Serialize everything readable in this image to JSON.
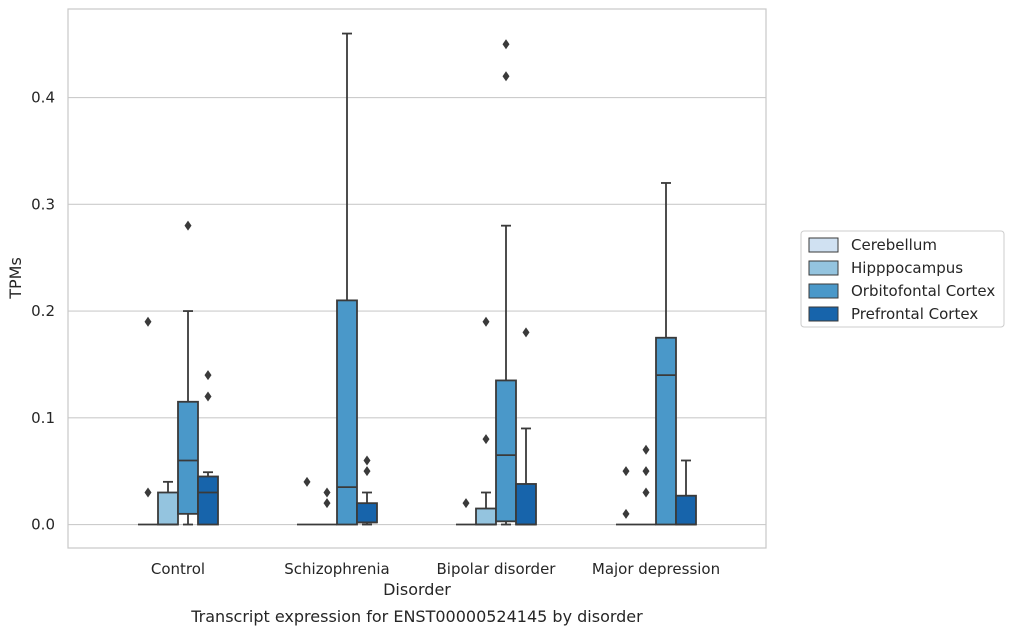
{
  "chart_data": {
    "type": "box",
    "title": "",
    "caption": "Transcript expression for ENST00000524145 by disorder",
    "xlabel": "Disorder",
    "ylabel": "TPMs",
    "ylim": [
      -0.022,
      0.483
    ],
    "yticks": [
      0.0,
      0.1,
      0.2,
      0.3,
      0.4
    ],
    "ytick_labels": [
      "0.0",
      "0.1",
      "0.2",
      "0.3",
      "0.4"
    ],
    "grid": "horizontal",
    "legend_position": "right",
    "categories": [
      "Control",
      "Schizophrenia",
      "Bipolar disorder",
      "Major depression"
    ],
    "colors": {
      "Cerebellum": "#d0e1f2",
      "Hipppocampus": "#94c4df",
      "Orbitofontal Cortex": "#4a98c9",
      "Prefrontal Cortex": "#1764ab",
      "edge": "#3a3a3a",
      "grid": "#cccccc",
      "frame": "#c8c8c8"
    },
    "series": [
      {
        "name": "Cerebellum",
        "boxes": [
          {
            "q1": 0.0,
            "median": 0.0,
            "q3": 0.0,
            "whislo": 0.0,
            "whishi": 0.0,
            "fliers": [
              0.19,
              0.03
            ]
          },
          {
            "q1": 0.0,
            "median": 0.0,
            "q3": 0.0,
            "whislo": 0.0,
            "whishi": 0.0,
            "fliers": [
              0.04
            ]
          },
          {
            "q1": 0.0,
            "median": 0.0,
            "q3": 0.0,
            "whislo": 0.0,
            "whishi": 0.0,
            "fliers": [
              0.02
            ]
          },
          {
            "q1": 0.0,
            "median": 0.0,
            "q3": 0.0,
            "whislo": 0.0,
            "whishi": 0.0,
            "fliers": [
              0.05,
              0.01
            ]
          }
        ]
      },
      {
        "name": "Hipppocampus",
        "boxes": [
          {
            "q1": 0.0,
            "median": 0.0,
            "q3": 0.03,
            "whislo": 0.0,
            "whishi": 0.04,
            "fliers": []
          },
          {
            "q1": 0.0,
            "median": 0.0,
            "q3": 0.0,
            "whislo": 0.0,
            "whishi": 0.0,
            "fliers": [
              0.03,
              0.02
            ]
          },
          {
            "q1": 0.0,
            "median": 0.0,
            "q3": 0.015,
            "whislo": 0.0,
            "whishi": 0.03,
            "fliers": [
              0.19,
              0.08
            ]
          },
          {
            "q1": 0.0,
            "median": 0.0,
            "q3": 0.0,
            "whislo": 0.0,
            "whishi": 0.0,
            "fliers": [
              0.07,
              0.05,
              0.03
            ]
          }
        ]
      },
      {
        "name": "Orbitofontal Cortex",
        "boxes": [
          {
            "q1": 0.01,
            "median": 0.06,
            "q3": 0.115,
            "whislo": 0.0,
            "whishi": 0.2,
            "fliers": [
              0.28
            ]
          },
          {
            "q1": 0.0,
            "median": 0.035,
            "q3": 0.21,
            "whislo": 0.0,
            "whishi": 0.46,
            "fliers": []
          },
          {
            "q1": 0.003,
            "median": 0.065,
            "q3": 0.135,
            "whislo": 0.0,
            "whishi": 0.28,
            "fliers": [
              0.45,
              0.42
            ]
          },
          {
            "q1": 0.0,
            "median": 0.14,
            "q3": 0.175,
            "whislo": 0.0,
            "whishi": 0.32,
            "fliers": []
          }
        ]
      },
      {
        "name": "Prefrontal Cortex",
        "boxes": [
          {
            "q1": 0.0,
            "median": 0.03,
            "q3": 0.045,
            "whislo": 0.0,
            "whishi": 0.049,
            "fliers": [
              0.14,
              0.12
            ]
          },
          {
            "q1": 0.002,
            "median": 0.002,
            "q3": 0.02,
            "whislo": 0.0,
            "whishi": 0.03,
            "fliers": [
              0.06,
              0.05
            ]
          },
          {
            "q1": 0.0,
            "median": 0.0,
            "q3": 0.038,
            "whislo": 0.0,
            "whishi": 0.09,
            "fliers": [
              0.18
            ]
          },
          {
            "q1": 0.0,
            "median": 0.0,
            "q3": 0.027,
            "whislo": 0.0,
            "whishi": 0.06,
            "fliers": []
          }
        ]
      }
    ]
  }
}
